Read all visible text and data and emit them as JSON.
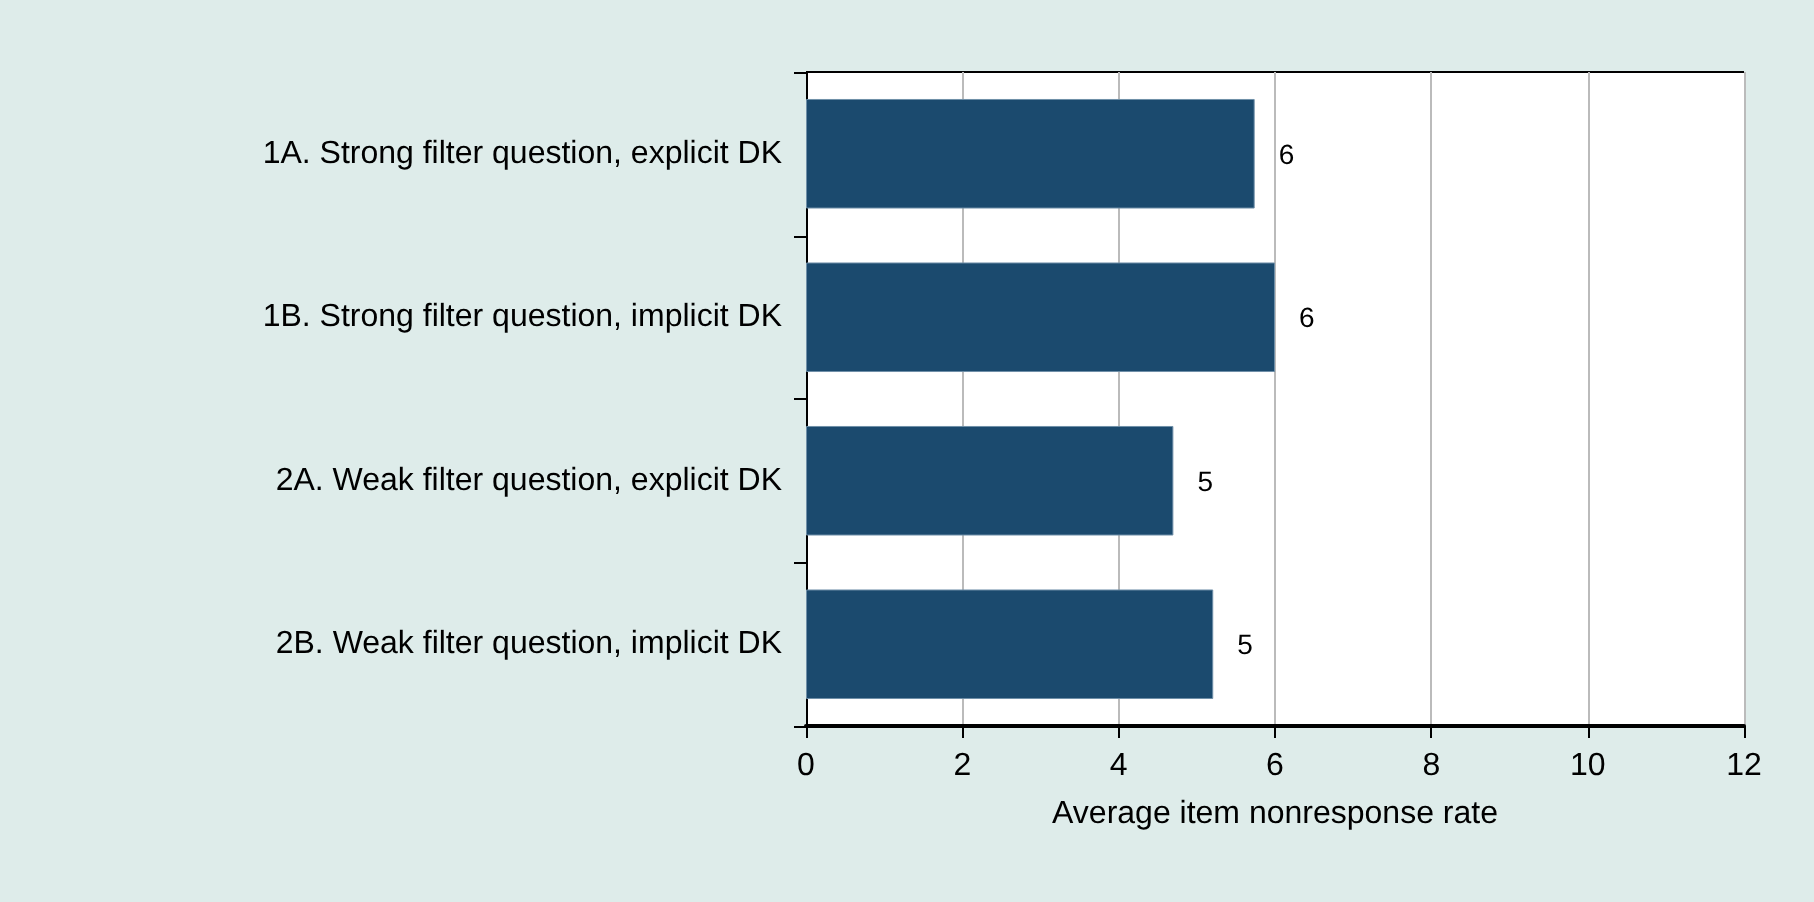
{
  "chart_data": {
    "type": "bar",
    "orientation": "horizontal",
    "xlabel": "Average item nonresponse rate",
    "categories": [
      "1A. Strong filter question, explicit DK",
      "1B. Strong filter question, implicit DK",
      "2A. Weak filter question, explicit DK",
      "2B. Weak filter question, implicit DK"
    ],
    "values": [
      5.74,
      6.0,
      4.7,
      5.21
    ],
    "value_labels": [
      "6",
      "6",
      "5",
      "5"
    ],
    "color": "#1b4a6e",
    "xlim": [
      0,
      12
    ],
    "xticks": [
      0,
      2,
      4,
      6,
      8,
      10,
      12
    ],
    "grid": "x"
  }
}
